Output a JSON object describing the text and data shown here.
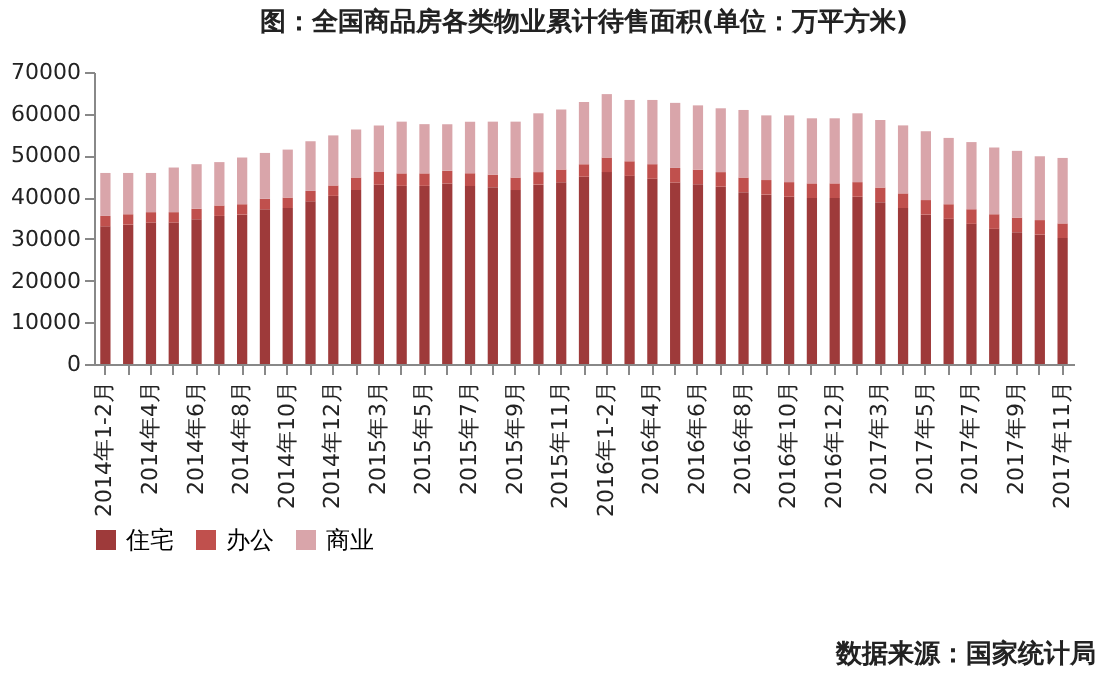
{
  "chart_data": {
    "type": "bar",
    "stacked": true,
    "title": "图：全国商品房各类物业累计待售面积(单位：万平方米)",
    "categories": [
      "2014年1-2月",
      null,
      "2014年4月",
      null,
      "2014年6月",
      null,
      "2014年8月",
      null,
      "2014年10月",
      null,
      "2014年12月",
      null,
      "2015年3月",
      null,
      "2015年5月",
      null,
      "2015年7月",
      null,
      "2015年9月",
      null,
      "2015年11月",
      null,
      "2016年1-2月",
      null,
      "2016年4月",
      null,
      "2016年6月",
      null,
      "2016年8月",
      null,
      "2016年10月",
      null,
      "2016年12月",
      null,
      "2017年3月",
      null,
      "2017年5月",
      null,
      "2017年7月",
      null,
      "2017年9月",
      null,
      "2017年11月"
    ],
    "series": [
      {
        "name": "住宅",
        "color": "#9e3a3a",
        "values": [
          33000,
          33400,
          33900,
          33900,
          34700,
          35500,
          35800,
          37100,
          37400,
          39000,
          40300,
          41700,
          43000,
          42700,
          42700,
          43300,
          42700,
          42400,
          41700,
          43000,
          43600,
          44900,
          46000,
          45100,
          44400,
          43500,
          43100,
          42500,
          41200,
          40600,
          40100,
          39800,
          39800,
          40100,
          38800,
          37400,
          35800,
          34800,
          33600,
          32400,
          31600,
          31000,
          30200
        ]
      },
      {
        "name": "办公",
        "color": "#c0504d",
        "values": [
          2500,
          2500,
          2500,
          2500,
          2500,
          2500,
          2500,
          2500,
          2500,
          2500,
          2500,
          3000,
          3000,
          3000,
          3000,
          3000,
          3000,
          3000,
          3000,
          3000,
          3000,
          3000,
          3500,
          3500,
          3500,
          3500,
          3500,
          3500,
          3500,
          3500,
          3500,
          3500,
          3500,
          3500,
          3500,
          3500,
          3500,
          3500,
          3500,
          3500,
          3500,
          3500,
          3500
        ]
      },
      {
        "name": "商业",
        "color": "#d9a5aa",
        "values": [
          10300,
          9900,
          9400,
          10700,
          10700,
          10400,
          11200,
          11000,
          11500,
          11900,
          12000,
          11500,
          11200,
          12400,
          11800,
          11200,
          12400,
          12700,
          13400,
          14100,
          14400,
          14900,
          15200,
          14700,
          15400,
          15600,
          15400,
          15300,
          16200,
          15500,
          16000,
          15600,
          15600,
          16500,
          16200,
          16300,
          16500,
          15900,
          16100,
          16000,
          16000,
          15300,
          15700
        ]
      }
    ],
    "ylim": [
      0,
      70000
    ],
    "yticks": [
      0,
      10000,
      20000,
      30000,
      40000,
      50000,
      60000,
      70000
    ],
    "grid": false,
    "legend": "bottom",
    "annotations": [
      "数据来源：国家统计局"
    ]
  }
}
